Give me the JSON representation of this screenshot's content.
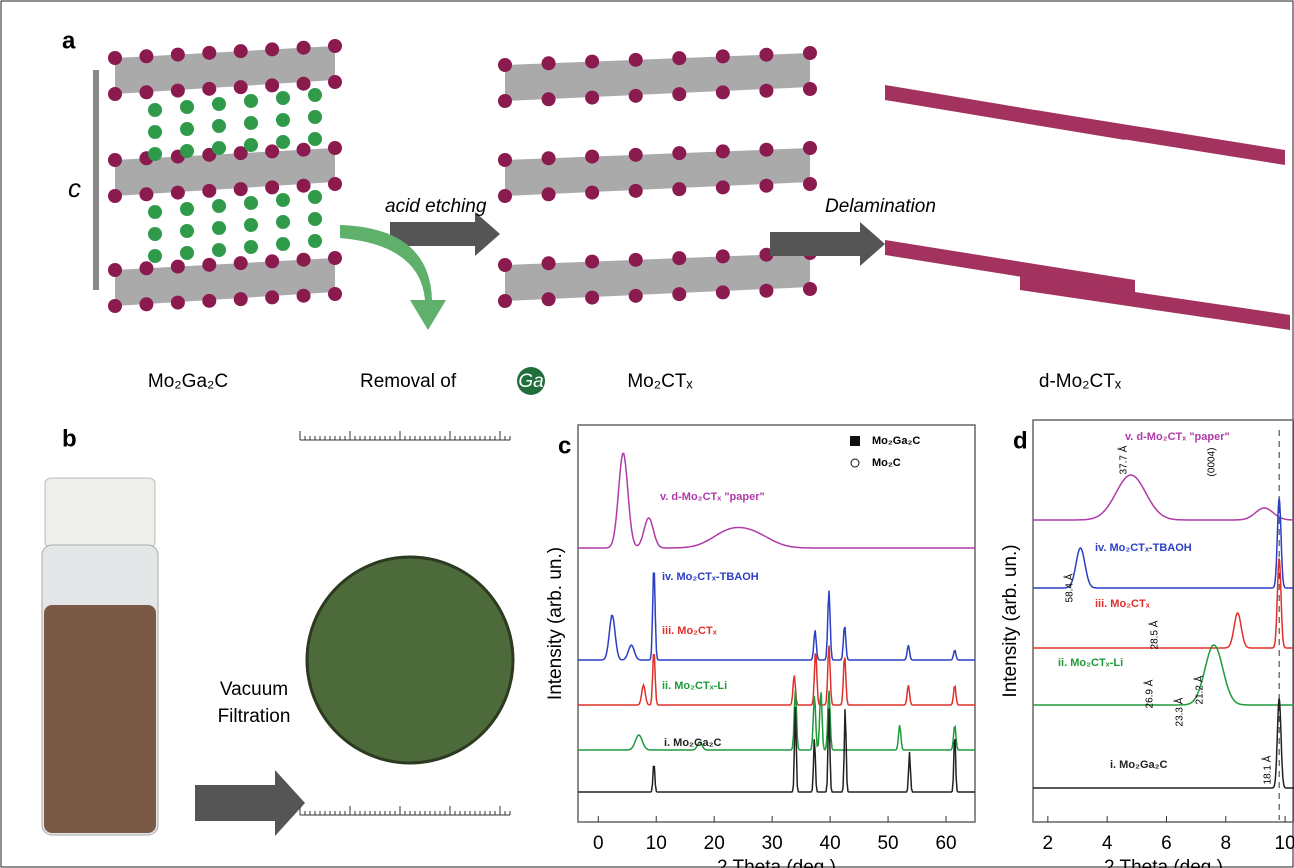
{
  "panel_a": {
    "label": "a",
    "axis_label": "c",
    "arrow_1": "acid etching",
    "arrow_2": "Delamination",
    "captions": [
      "Mo₂Ga₂C",
      "Removal of",
      "Ga",
      "Mo₂CTₓ",
      "d-Mo₂CTₓ"
    ]
  },
  "panel_b": {
    "label": "b",
    "arrow_text": [
      "Vacuum",
      "Filtration"
    ]
  },
  "panel_c": {
    "label": "c",
    "x_label": "2 Theta (deg.)",
    "y_label": "Intensity (arb. un.)",
    "xlim": [
      -3.5,
      65
    ],
    "xticks": [
      0,
      10,
      20,
      30,
      40,
      50,
      60
    ],
    "legend": [
      {
        "name": "Mo₂Ga₂C",
        "symbol": "square"
      },
      {
        "name": "Mo₂C",
        "symbol": "circle"
      }
    ],
    "traces": [
      {
        "name": "v. d-Mo₂CTₓ \"paper\"",
        "color": "#b03aa8",
        "peaks": [
          [
            4.3,
            0.95,
            0.8
          ],
          [
            8.7,
            0.3,
            0.8
          ],
          [
            22.5,
            0.15,
            3
          ],
          [
            27,
            0.12,
            3
          ]
        ]
      },
      {
        "name": "iv. Mo₂CTₓ-TBAOH",
        "color": "#2a3fc4",
        "peaks": [
          [
            2.4,
            0.45,
            0.5
          ],
          [
            5.7,
            0.15,
            0.5
          ],
          [
            9.6,
            0.95,
            0.2
          ],
          [
            37.4,
            0.3,
            0.2
          ],
          [
            39.8,
            0.7,
            0.2
          ],
          [
            42.5,
            0.35,
            0.2
          ],
          [
            53.5,
            0.15,
            0.2
          ],
          [
            61.5,
            0.1,
            0.2
          ]
        ]
      },
      {
        "name": "iii. Mo₂CTₓ",
        "color": "#e0302a",
        "peaks": [
          [
            7.8,
            0.2,
            0.3
          ],
          [
            9.6,
            0.55,
            0.2
          ],
          [
            33.8,
            0.3,
            0.2
          ],
          [
            37.5,
            0.55,
            0.2
          ],
          [
            39.8,
            0.6,
            0.2
          ],
          [
            42.5,
            0.5,
            0.2
          ],
          [
            53.5,
            0.2,
            0.2
          ],
          [
            61.5,
            0.2,
            0.2
          ]
        ]
      },
      {
        "name": "ii. Mo₂CTₓ-Li",
        "color": "#1e9a3a",
        "peaks": [
          [
            7,
            0.15,
            0.6
          ],
          [
            17.5,
            0.08,
            0.4
          ],
          [
            34,
            0.6,
            0.2
          ],
          [
            37.3,
            0.55,
            0.2
          ],
          [
            38.4,
            0.6,
            0.2
          ],
          [
            39.8,
            0.6,
            0.2
          ],
          [
            52,
            0.25,
            0.2
          ],
          [
            61.5,
            0.25,
            0.2
          ]
        ]
      },
      {
        "name": "i. Mo₂Ga₂C",
        "color": "#222222",
        "peaks": [
          [
            9.6,
            0.3,
            0.15
          ],
          [
            34,
            0.85,
            0.15
          ],
          [
            37.3,
            0.55,
            0.15
          ],
          [
            39.8,
            0.85,
            0.15
          ],
          [
            42.6,
            0.85,
            0.15
          ],
          [
            53.7,
            0.4,
            0.15
          ],
          [
            61.5,
            0.6,
            0.15
          ]
        ]
      }
    ]
  },
  "panel_d": {
    "label": "d",
    "x_label": "2 Theta (deg.)",
    "y_label": "Intensity (arb. un.)",
    "xlim": [
      1.5,
      10.3
    ],
    "xticks": [
      2,
      4,
      6,
      8,
      10
    ],
    "traces": [
      {
        "name": "v. d-Mo₂CTₓ \"paper\"",
        "color": "#b03aa8",
        "peaks": [
          [
            4.8,
            0.45,
            0.5
          ],
          [
            9.3,
            0.12,
            0.3
          ]
        ]
      },
      {
        "name": "iv. Mo₂CTₓ-TBAOH",
        "color": "#2a3fc4",
        "peaks": [
          [
            3.1,
            0.4,
            0.15
          ],
          [
            9.8,
            0.9,
            0.06
          ]
        ]
      },
      {
        "name": "iii. Mo₂CTₓ",
        "color": "#e0302a",
        "peaks": [
          [
            8.4,
            0.35,
            0.12
          ],
          [
            9.8,
            0.9,
            0.06
          ]
        ]
      },
      {
        "name": "ii. Mo₂CTₓ-Li",
        "color": "#1e9a3a",
        "peaks": [
          [
            7.6,
            0.6,
            0.3
          ]
        ]
      },
      {
        "name": "i. Mo₂Ga₂C",
        "color": "#222222",
        "peaks": [
          [
            9.8,
            0.9,
            0.06
          ]
        ]
      }
    ],
    "annotations": [
      "37.7 Å",
      "(0004)",
      "58.4 Å",
      "28.5 Å",
      "26.9 Å",
      "21.2 Å",
      "23.3 Å",
      "18.1 Å"
    ]
  }
}
